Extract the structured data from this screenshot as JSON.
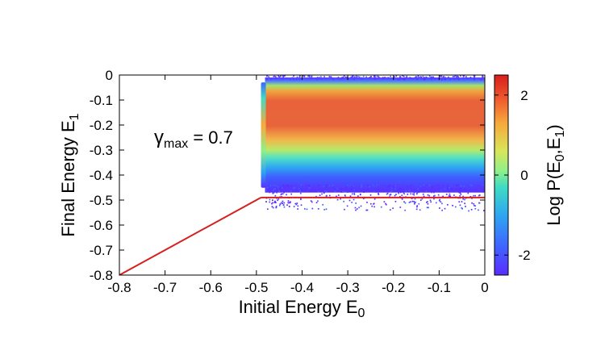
{
  "chart_data": {
    "type": "heatmap",
    "xlabel": "Initial Energy E",
    "xlabel_sub": "0",
    "ylabel": "Final Energy E",
    "ylabel_sub": "1",
    "xlim": [
      -0.8,
      0
    ],
    "ylim": [
      -0.8,
      0
    ],
    "xticks": [
      "-0.8",
      "-0.7",
      "-0.6",
      "-0.5",
      "-0.4",
      "-0.3",
      "-0.2",
      "-0.1",
      "0"
    ],
    "xtick_values": [
      -0.8,
      -0.7,
      -0.6,
      -0.5,
      -0.4,
      -0.3,
      -0.2,
      -0.1,
      0
    ],
    "yticks": [
      "0",
      "-0.1",
      "-0.2",
      "-0.3",
      "-0.4",
      "-0.5",
      "-0.6",
      "-0.7",
      "-0.8"
    ],
    "ytick_values": [
      0,
      -0.1,
      -0.2,
      -0.3,
      -0.4,
      -0.5,
      -0.6,
      -0.7,
      -0.8
    ],
    "annotation": {
      "symbol": "γ",
      "sub": "max",
      "text": " = 0.7"
    },
    "colorbar": {
      "label": "Log P(E",
      "label_sub0": "0",
      "label_mid": ",E",
      "label_sub1": "1",
      "label_end": ")",
      "range": [
        -2.5,
        2.5
      ],
      "ticks": [
        "2",
        "0",
        "-2"
      ],
      "tick_values": [
        2,
        0,
        -2
      ]
    },
    "density_band": {
      "x_range": [
        -0.49,
        0
      ],
      "y_peak": -0.14,
      "y_range": [
        -0.01,
        -0.47
      ]
    },
    "boundary_lines": [
      {
        "name": "diagonal",
        "points": [
          [
            -0.8,
            -0.8
          ],
          [
            -0.49,
            -0.49
          ]
        ],
        "color": "#d62020"
      },
      {
        "name": "threshold",
        "points": [
          [
            -0.49,
            -0.49
          ],
          [
            0,
            -0.49
          ]
        ],
        "color": "#d62020"
      }
    ]
  }
}
